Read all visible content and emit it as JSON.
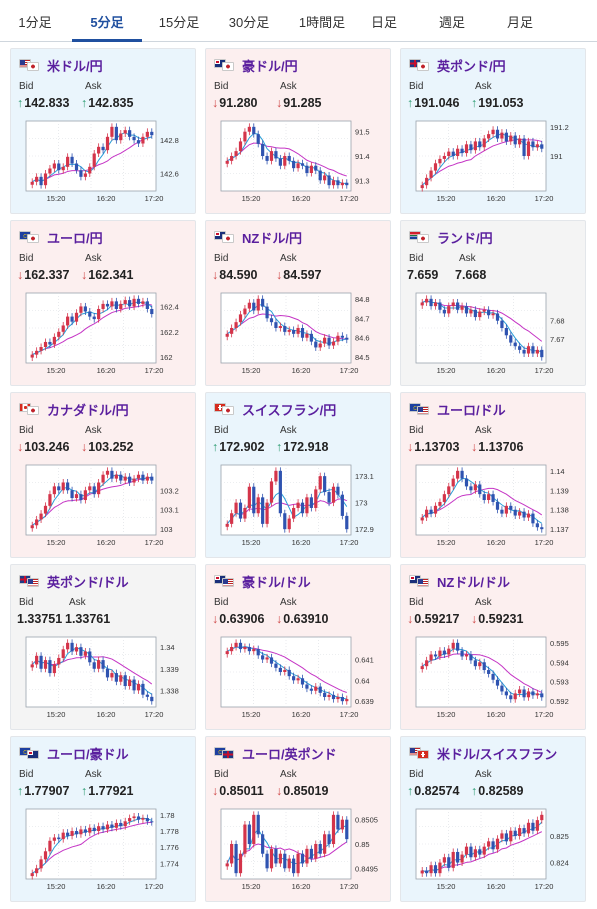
{
  "tabs": [
    {
      "label": "1分足",
      "active": false
    },
    {
      "label": "5分足",
      "active": true
    },
    {
      "label": "15分足",
      "active": false
    },
    {
      "label": "30分足",
      "active": false
    },
    {
      "label": "1時間足",
      "active": false
    },
    {
      "label": "日足",
      "active": false
    },
    {
      "label": "週足",
      "active": false
    },
    {
      "label": "月足",
      "active": false
    }
  ],
  "labels": {
    "bid": "Bid",
    "ask": "Ask"
  },
  "colors": {
    "up_candle": "#d4344a",
    "down_candle": "#2f53b0",
    "ma_short": "#2a9fd8",
    "ma_long": "#c535c5"
  },
  "pairs": [
    {
      "name": "米ドル/円",
      "flags": [
        "us",
        "jp"
      ],
      "dir": "up",
      "bid": "142.833",
      "ask": "142.835",
      "ticks": [
        "142.8",
        "142.6"
      ],
      "times": [
        "15:20",
        "16:20",
        "17:20"
      ],
      "closes": [
        142.55,
        142.58,
        142.53,
        142.6,
        142.63,
        142.66,
        142.62,
        142.64,
        142.7,
        142.66,
        142.62,
        142.58,
        142.6,
        142.64,
        142.72,
        142.76,
        142.74,
        142.82,
        142.88,
        142.8,
        142.84,
        142.86,
        142.82,
        142.8,
        142.78,
        142.82,
        142.85,
        142.83
      ]
    },
    {
      "name": "豪ドル/円",
      "flags": [
        "au",
        "jp"
      ],
      "dir": "down",
      "bid": "91.280",
      "ask": "91.285",
      "ticks": [
        "91.5",
        "91.4",
        "91.3"
      ],
      "times": [
        "15:20",
        "16:20",
        "17:20"
      ],
      "closes": [
        91.38,
        91.4,
        91.42,
        91.46,
        91.5,
        91.52,
        91.49,
        91.45,
        91.4,
        91.38,
        91.42,
        91.39,
        91.36,
        91.4,
        91.38,
        91.35,
        91.37,
        91.36,
        91.33,
        91.36,
        91.34,
        91.3,
        91.32,
        91.28,
        91.3,
        91.28,
        91.29,
        91.28
      ]
    },
    {
      "name": "英ポンド/円",
      "flags": [
        "gb",
        "jp"
      ],
      "dir": "up",
      "bid": "191.046",
      "ask": "191.053",
      "ticks": [
        "191.2",
        "191"
      ],
      "times": [
        "15:20",
        "16:20",
        "17:20"
      ],
      "closes": [
        190.8,
        190.85,
        190.9,
        190.95,
        190.98,
        191.0,
        191.03,
        191.0,
        191.05,
        191.02,
        191.08,
        191.04,
        191.1,
        191.06,
        191.12,
        191.15,
        191.18,
        191.12,
        191.16,
        191.1,
        191.14,
        191.08,
        191.12,
        191.0,
        191.1,
        191.06,
        191.08,
        191.05
      ]
    },
    {
      "name": "ユーロ/円",
      "flags": [
        "eu",
        "jp"
      ],
      "dir": "down",
      "bid": "162.337",
      "ask": "162.341",
      "ticks": [
        "162.4",
        "162.2",
        "162"
      ],
      "times": [
        "15:20",
        "16:20",
        "17:20"
      ],
      "closes": [
        162.02,
        162.05,
        162.08,
        162.12,
        162.1,
        162.16,
        162.2,
        162.25,
        162.32,
        162.28,
        162.35,
        162.4,
        162.36,
        162.32,
        162.3,
        162.38,
        162.42,
        162.4,
        162.44,
        162.38,
        162.42,
        162.45,
        162.4,
        162.46,
        162.42,
        162.44,
        162.38,
        162.34
      ]
    },
    {
      "name": "NZドル/円",
      "flags": [
        "nz",
        "jp"
      ],
      "dir": "down",
      "bid": "84.590",
      "ask": "84.597",
      "ticks": [
        "84.8",
        "84.7",
        "84.6",
        "84.5"
      ],
      "times": [
        "15:20",
        "16:20",
        "17:20"
      ],
      "closes": [
        84.62,
        84.65,
        84.68,
        84.72,
        84.75,
        84.78,
        84.74,
        84.8,
        84.76,
        84.7,
        84.68,
        84.65,
        84.66,
        84.63,
        84.64,
        84.62,
        84.65,
        84.6,
        84.62,
        84.58,
        84.55,
        84.57,
        84.6,
        84.56,
        84.58,
        84.61,
        84.6,
        84.59
      ]
    },
    {
      "name": "ランド/円",
      "flags": [
        "za",
        "jp"
      ],
      "dir": "flat",
      "bid": "7.659",
      "ask": "7.668",
      "ticks": [
        "7.68",
        "7.67"
      ],
      "times": [
        "15:20",
        "16:20",
        "17:20"
      ],
      "closes": [
        7.69,
        7.692,
        7.688,
        7.69,
        7.686,
        7.684,
        7.688,
        7.69,
        7.686,
        7.688,
        7.684,
        7.686,
        7.682,
        7.685,
        7.686,
        7.683,
        7.684,
        7.68,
        7.676,
        7.672,
        7.668,
        7.666,
        7.664,
        7.662,
        7.666,
        7.662,
        7.664,
        7.66
      ]
    },
    {
      "name": "カナダドル/円",
      "flags": [
        "ca",
        "jp"
      ],
      "dir": "down",
      "bid": "103.246",
      "ask": "103.252",
      "ticks": [
        "103.2",
        "103.1",
        "103"
      ],
      "times": [
        "15:20",
        "16:20",
        "17:20"
      ],
      "closes": [
        103.02,
        103.05,
        103.08,
        103.12,
        103.18,
        103.22,
        103.2,
        103.24,
        103.2,
        103.16,
        103.18,
        103.15,
        103.2,
        103.22,
        103.18,
        103.24,
        103.28,
        103.3,
        103.26,
        103.28,
        103.25,
        103.27,
        103.24,
        103.26,
        103.28,
        103.25,
        103.27,
        103.25
      ]
    },
    {
      "name": "スイスフラン/円",
      "flags": [
        "ch",
        "jp"
      ],
      "dir": "up",
      "bid": "172.902",
      "ask": "172.918",
      "ticks": [
        "173.1",
        "173",
        "172.9"
      ],
      "times": [
        "15:20",
        "16:20",
        "17:20"
      ],
      "closes": [
        172.92,
        172.96,
        173.0,
        172.94,
        172.98,
        173.06,
        172.96,
        173.02,
        172.92,
        173.0,
        173.08,
        173.12,
        172.96,
        172.9,
        172.94,
        172.98,
        173.0,
        172.96,
        173.02,
        172.98,
        173.05,
        173.1,
        173.04,
        173.0,
        173.06,
        173.03,
        172.95,
        172.9
      ]
    },
    {
      "name": "ユーロ/ドル",
      "flags": [
        "eu",
        "us"
      ],
      "dir": "down",
      "bid": "1.13703",
      "ask": "1.13706",
      "ticks": [
        "1.14",
        "1.139",
        "1.138",
        "1.137"
      ],
      "times": [
        "15:20",
        "16:20",
        "17:20"
      ],
      "closes": [
        1.1376,
        1.138,
        1.1378,
        1.1382,
        1.1384,
        1.1388,
        1.1392,
        1.1396,
        1.14,
        1.1396,
        1.1392,
        1.139,
        1.1393,
        1.1388,
        1.1385,
        1.1388,
        1.1384,
        1.138,
        1.1378,
        1.1382,
        1.138,
        1.1377,
        1.1379,
        1.1376,
        1.1378,
        1.1373,
        1.1371,
        1.137
      ]
    },
    {
      "name": "英ポンド/ドル",
      "flags": [
        "gb",
        "us"
      ],
      "dir": "flat",
      "bid": "1.33751",
      "ask": "1.33761",
      "ticks": [
        "1.34",
        "1.339",
        "1.338"
      ],
      "times": [
        "15:20",
        "16:20",
        "17:20"
      ],
      "closes": [
        1.3392,
        1.3396,
        1.339,
        1.3394,
        1.3388,
        1.3392,
        1.3395,
        1.3399,
        1.3402,
        1.3398,
        1.34,
        1.3396,
        1.3398,
        1.3393,
        1.339,
        1.3394,
        1.339,
        1.3386,
        1.3388,
        1.3384,
        1.3387,
        1.3382,
        1.3385,
        1.338,
        1.3383,
        1.3378,
        1.3377,
        1.3375
      ]
    },
    {
      "name": "豪ドル/ドル",
      "flags": [
        "au",
        "us"
      ],
      "dir": "down",
      "bid": "0.63906",
      "ask": "0.63910",
      "ticks": [
        "0.641",
        "0.64",
        "0.639"
      ],
      "times": [
        "15:20",
        "16:20",
        "17:20"
      ],
      "closes": [
        0.6414,
        0.6416,
        0.6418,
        0.6415,
        0.6416,
        0.6414,
        0.6415,
        0.6412,
        0.641,
        0.6411,
        0.6408,
        0.6406,
        0.6404,
        0.6405,
        0.6402,
        0.64,
        0.6401,
        0.6398,
        0.6396,
        0.6395,
        0.6397,
        0.6394,
        0.6392,
        0.6393,
        0.6391,
        0.6392,
        0.639,
        0.6391
      ]
    },
    {
      "name": "NZドル/ドル",
      "flags": [
        "nz",
        "us"
      ],
      "dir": "down",
      "bid": "0.59217",
      "ask": "0.59231",
      "ticks": [
        "0.595",
        "0.594",
        "0.593",
        "0.592"
      ],
      "times": [
        "15:20",
        "16:20",
        "17:20"
      ],
      "closes": [
        0.5938,
        0.5941,
        0.5944,
        0.5943,
        0.5946,
        0.5944,
        0.5947,
        0.595,
        0.5946,
        0.5943,
        0.5944,
        0.5941,
        0.5938,
        0.594,
        0.5936,
        0.5934,
        0.5931,
        0.5928,
        0.5925,
        0.5923,
        0.5921,
        0.5924,
        0.5926,
        0.5922,
        0.5925,
        0.5923,
        0.5924,
        0.5922
      ]
    },
    {
      "name": "ユーロ/豪ドル",
      "flags": [
        "eu",
        "au"
      ],
      "dir": "up",
      "bid": "1.77907",
      "ask": "1.77921",
      "ticks": [
        "1.78",
        "1.778",
        "1.776",
        "1.774"
      ],
      "times": [
        "15:20",
        "16:20",
        "17:20"
      ],
      "closes": [
        1.7728,
        1.7734,
        1.7745,
        1.7755,
        1.7768,
        1.7772,
        1.777,
        1.7778,
        1.7774,
        1.778,
        1.7776,
        1.7782,
        1.7778,
        1.7784,
        1.778,
        1.7786,
        1.7782,
        1.7788,
        1.7784,
        1.779,
        1.7786,
        1.7792,
        1.7796,
        1.7798,
        1.7794,
        1.7796,
        1.7792,
        1.7791
      ]
    },
    {
      "name": "ユーロ/英ポンド",
      "flags": [
        "eu",
        "gb"
      ],
      "dir": "down",
      "bid": "0.85011",
      "ask": "0.85019",
      "ticks": [
        "0.8505",
        "0.85",
        "0.8495"
      ],
      "times": [
        "15:20",
        "16:20",
        "17:20"
      ],
      "closes": [
        0.8496,
        0.85,
        0.8494,
        0.8498,
        0.8504,
        0.85,
        0.8506,
        0.8502,
        0.8498,
        0.8495,
        0.8499,
        0.8496,
        0.8498,
        0.8495,
        0.8497,
        0.8494,
        0.8498,
        0.8496,
        0.8499,
        0.8497,
        0.85,
        0.8498,
        0.8502,
        0.85,
        0.8506,
        0.8503,
        0.8505,
        0.8501
      ]
    },
    {
      "name": "米ドル/スイスフラン",
      "flags": [
        "us",
        "ch"
      ],
      "dir": "up",
      "bid": "0.82574",
      "ask": "0.82589",
      "ticks": [
        "0.825",
        "0.824"
      ],
      "times": [
        "15:20",
        "16:20",
        "17:20"
      ],
      "closes": [
        0.8237,
        0.8236,
        0.8239,
        0.8236,
        0.824,
        0.8242,
        0.8238,
        0.8244,
        0.824,
        0.8243,
        0.8246,
        0.8242,
        0.8245,
        0.8243,
        0.8246,
        0.8248,
        0.8245,
        0.8249,
        0.8251,
        0.8248,
        0.8252,
        0.825,
        0.8253,
        0.8251,
        0.8255,
        0.8252,
        0.8256,
        0.8258
      ]
    }
  ]
}
